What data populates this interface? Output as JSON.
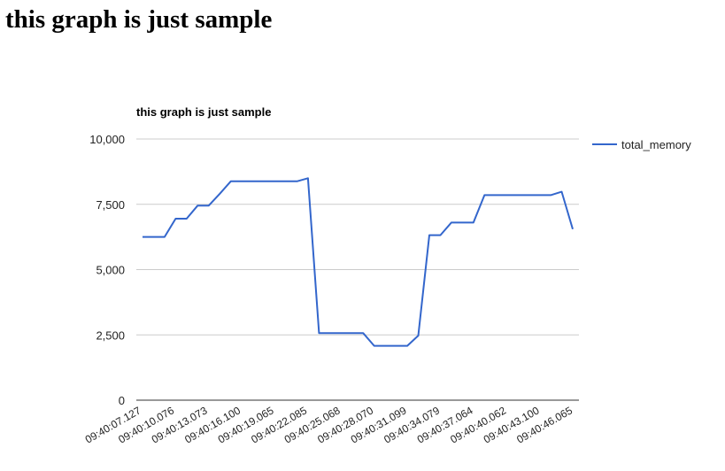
{
  "page": {
    "heading": "this graph is just sample"
  },
  "chart_data": {
    "type": "line",
    "title": "this graph is just sample",
    "xlabel": "",
    "ylabel": "",
    "ylim": [
      0,
      10000
    ],
    "yticks": [
      0,
      2500,
      5000,
      7500,
      10000
    ],
    "ytick_labels": [
      "0",
      "2,500",
      "5,000",
      "7,500",
      "10,000"
    ],
    "grid": true,
    "legend_position": "right",
    "x_tick_labels": [
      "09:40:07.127",
      "09:40:10.076",
      "09:40:13.073",
      "09:40:16.100",
      "09:40:19.065",
      "09:40:22.085",
      "09:40:25.068",
      "09:40:28.070",
      "09:40:31.099",
      "09:40:34.079",
      "09:40:37.064",
      "09:40:40.062",
      "09:40:43.100",
      "09:40:46.065"
    ],
    "series": [
      {
        "name": "total_memory",
        "color": "#3366cc",
        "values": [
          6250,
          6250,
          6250,
          6950,
          6950,
          7450,
          7450,
          7900,
          8380,
          8380,
          8380,
          8380,
          8380,
          8380,
          8380,
          8500,
          2570,
          2570,
          2570,
          2570,
          2570,
          2080,
          2080,
          2080,
          2080,
          2470,
          6320,
          6320,
          6800,
          6800,
          6800,
          7850,
          7850,
          7850,
          7850,
          7850,
          7850,
          7850,
          7980,
          6550
        ]
      }
    ]
  }
}
